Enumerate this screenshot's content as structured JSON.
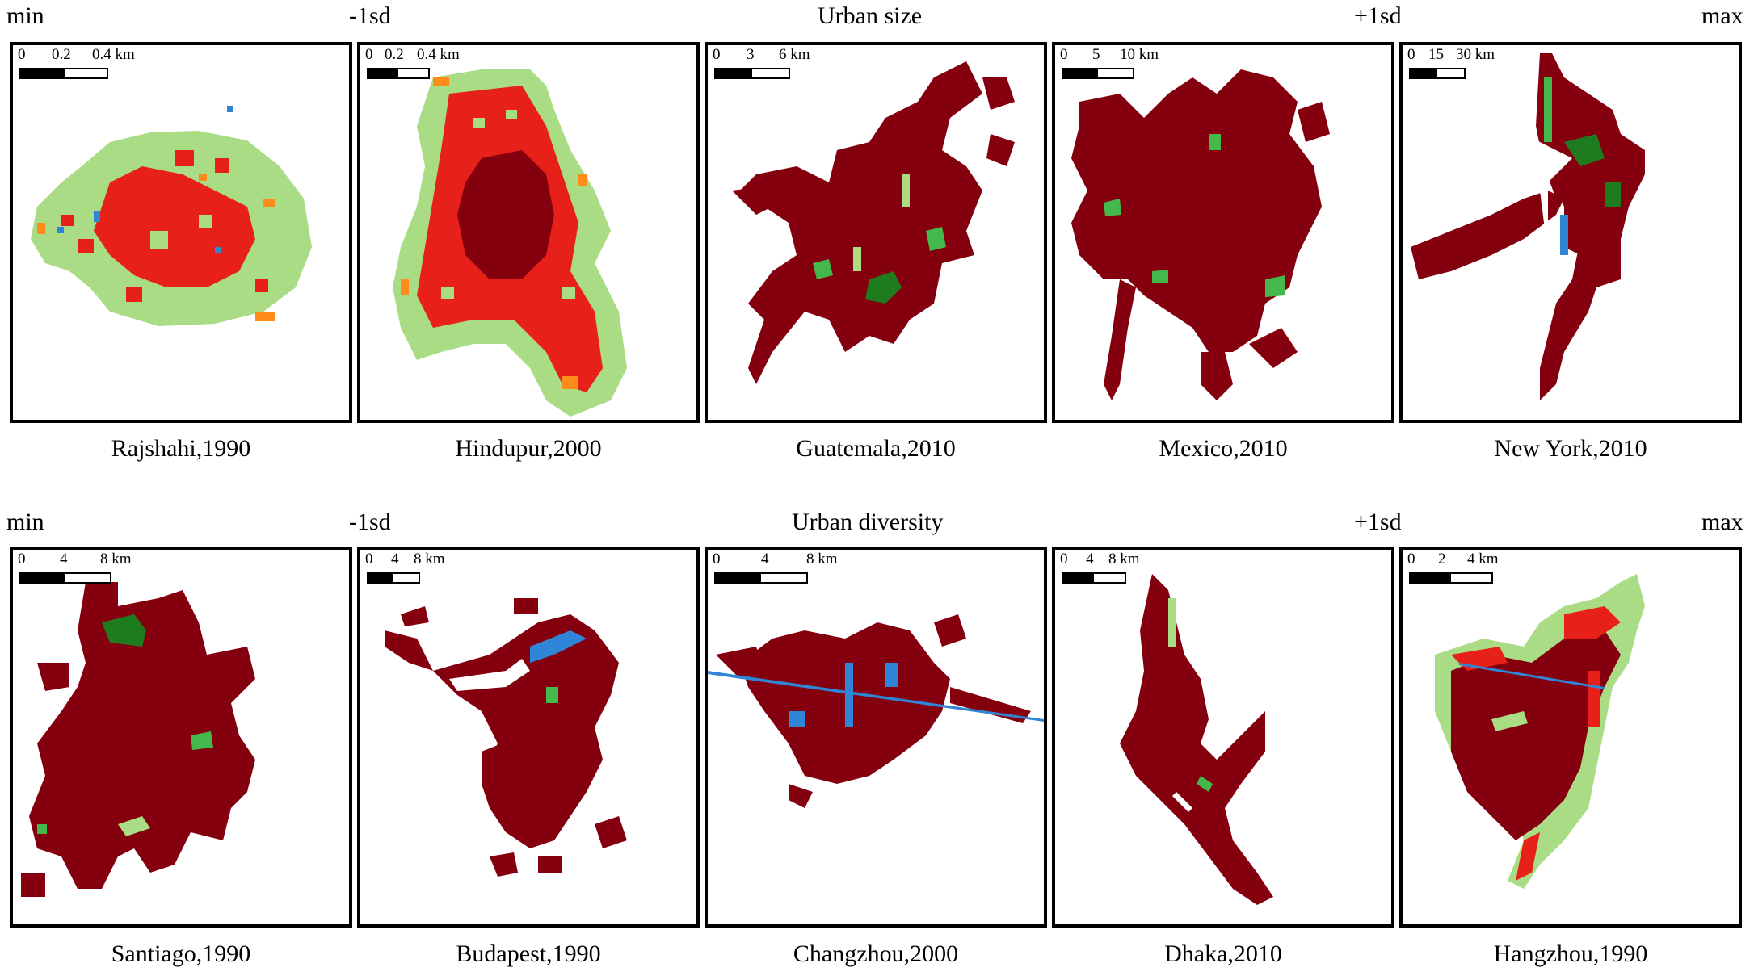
{
  "colors": {
    "high_density": "#85000e",
    "medium_density": "#e8201a",
    "low_density": "#a9dc84",
    "fringe": "#ff8c1a",
    "green_space": "#1e7c1e",
    "grass": "#44b84a",
    "water": "#2f86d6"
  },
  "rows": [
    {
      "title": "Urban size",
      "labels": {
        "min": "min",
        "minus_sd": "-1sd",
        "plus_sd": "+1sd",
        "max": "max"
      },
      "panels": [
        {
          "caption": "Rajshahi,1990",
          "scale": [
            "0",
            "0.2",
            "0.4 km"
          ]
        },
        {
          "caption": "Hindupur,2000",
          "scale": [
            "0",
            "0.2",
            "0.4 km"
          ]
        },
        {
          "caption": "Guatemala,2010",
          "scale": [
            "0",
            "3",
            "6 km"
          ]
        },
        {
          "caption": "Mexico,2010",
          "scale": [
            "0",
            "5",
            "10 km"
          ]
        },
        {
          "caption": "New York,2010",
          "scale": [
            "0",
            "15",
            "30 km"
          ]
        }
      ]
    },
    {
      "title": "Urban diversity",
      "labels": {
        "min": "min",
        "minus_sd": "-1sd",
        "plus_sd": "+1sd",
        "max": "max"
      },
      "panels": [
        {
          "caption": "Santiago,1990",
          "scale": [
            "0",
            "4",
            "8 km"
          ]
        },
        {
          "caption": "Budapest,1990",
          "scale": [
            "0",
            "4",
            "8 km"
          ]
        },
        {
          "caption": "Changzhou,2000",
          "scale": [
            "0",
            "4",
            "8 km"
          ]
        },
        {
          "caption": "Dhaka,2010",
          "scale": [
            "0",
            "4",
            "8 km"
          ]
        },
        {
          "caption": "Hangzhou,1990",
          "scale": [
            "0",
            "2",
            "4 km"
          ]
        }
      ]
    }
  ]
}
